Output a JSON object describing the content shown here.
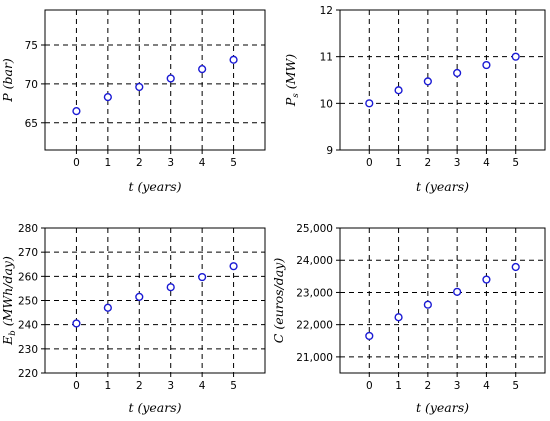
{
  "chart_data": [
    {
      "type": "scatter",
      "x": [
        0,
        1,
        2,
        3,
        4,
        5
      ],
      "y": [
        66.5,
        68.3,
        69.6,
        70.7,
        71.9,
        73.1
      ],
      "xlabel_symbol": "t",
      "xlabel_units": "years",
      "ylabel_symbol": "P",
      "ylabel_subscript": "",
      "ylabel_units": "bar",
      "xticks": [
        "0",
        "1",
        "2",
        "3",
        "4",
        "5"
      ],
      "yticks": [
        "65",
        "70",
        "75"
      ],
      "xlim": [
        -1,
        6
      ],
      "ylim": [
        61.5,
        79.5
      ],
      "ytick_values": [
        65,
        70,
        75
      ],
      "grid": true,
      "marker_color": "#1a1ad4"
    },
    {
      "type": "scatter",
      "x": [
        0,
        1,
        2,
        3,
        4,
        5
      ],
      "y": [
        10.0,
        10.28,
        10.47,
        10.65,
        10.82,
        11.0
      ],
      "xlabel_symbol": "t",
      "xlabel_units": "years",
      "ylabel_symbol": "P",
      "ylabel_subscript": "s",
      "ylabel_units": "MW",
      "xticks": [
        "0",
        "1",
        "2",
        "3",
        "4",
        "5"
      ],
      "yticks": [
        "9",
        "10",
        "11",
        "12"
      ],
      "xlim": [
        -1,
        6
      ],
      "ylim": [
        9,
        12
      ],
      "ytick_values": [
        9,
        10,
        11,
        12
      ],
      "grid": true,
      "marker_color": "#1a1ad4"
    },
    {
      "type": "scatter",
      "x": [
        0,
        1,
        2,
        3,
        4,
        5
      ],
      "y": [
        240.5,
        247,
        251.5,
        255.5,
        259.7,
        264.2
      ],
      "xlabel_symbol": "t",
      "xlabel_units": "years",
      "ylabel_symbol": "E",
      "ylabel_subscript": "b",
      "ylabel_units": "MWh/day",
      "xticks": [
        "0",
        "1",
        "2",
        "3",
        "4",
        "5"
      ],
      "yticks": [
        "220",
        "230",
        "240",
        "250",
        "260",
        "270",
        "280"
      ],
      "xlim": [
        -1,
        6
      ],
      "ylim": [
        220,
        280
      ],
      "ytick_values": [
        220,
        230,
        240,
        250,
        260,
        270,
        280
      ],
      "grid": true,
      "marker_color": "#1a1ad4"
    },
    {
      "type": "scatter",
      "x": [
        0,
        1,
        2,
        3,
        4,
        5
      ],
      "y": [
        21650,
        22230,
        22620,
        23020,
        23400,
        23790
      ],
      "xlabel_symbol": "t",
      "xlabel_units": "years",
      "ylabel_symbol": "C",
      "ylabel_subscript": "",
      "ylabel_units": "euros/day",
      "xticks": [
        "0",
        "1",
        "2",
        "3",
        "4",
        "5"
      ],
      "yticks": [
        "21,000",
        "22,000",
        "23,000",
        "24,000",
        "25,000"
      ],
      "xlim": [
        -1,
        6
      ],
      "ylim": [
        20500,
        25000
      ],
      "ytick_values": [
        21000,
        22000,
        23000,
        24000,
        25000
      ],
      "grid": true,
      "marker_color": "#1a1ad4"
    }
  ]
}
